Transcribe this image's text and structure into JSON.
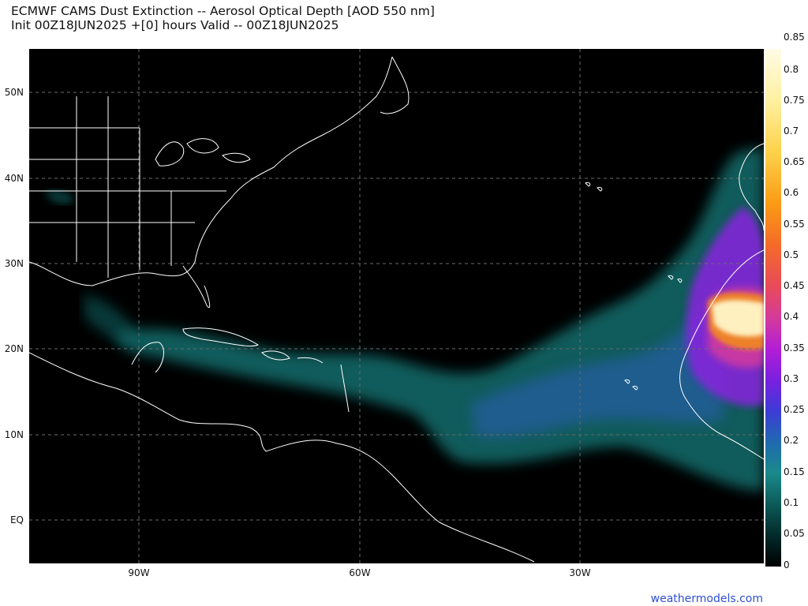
{
  "title": {
    "line1": "ECMWF CAMS Dust Extinction -- Aerosol Optical Depth [AOD 550 nm]",
    "line2": "Init 00Z18JUN2025 +[0] hours Valid -- 00Z18JUN2025"
  },
  "map": {
    "lat_labels": [
      "50N",
      "40N",
      "30N",
      "20N",
      "10N",
      "EQ"
    ],
    "lon_labels": [
      "90W",
      "60W",
      "30W"
    ],
    "colors": {
      "background": "#000000",
      "coastline": "#ffffff",
      "grid": "#6b6b6b"
    }
  },
  "colorbar": {
    "ticks": [
      "0.85",
      "0.8",
      "0.75",
      "0.7",
      "0.65",
      "0.6",
      "0.55",
      "0.5",
      "0.45",
      "0.4",
      "0.35",
      "0.3",
      "0.25",
      "0.2",
      "0.15",
      "0.1",
      "0.05",
      "0"
    ]
  },
  "brand": "weathermodels.com"
}
